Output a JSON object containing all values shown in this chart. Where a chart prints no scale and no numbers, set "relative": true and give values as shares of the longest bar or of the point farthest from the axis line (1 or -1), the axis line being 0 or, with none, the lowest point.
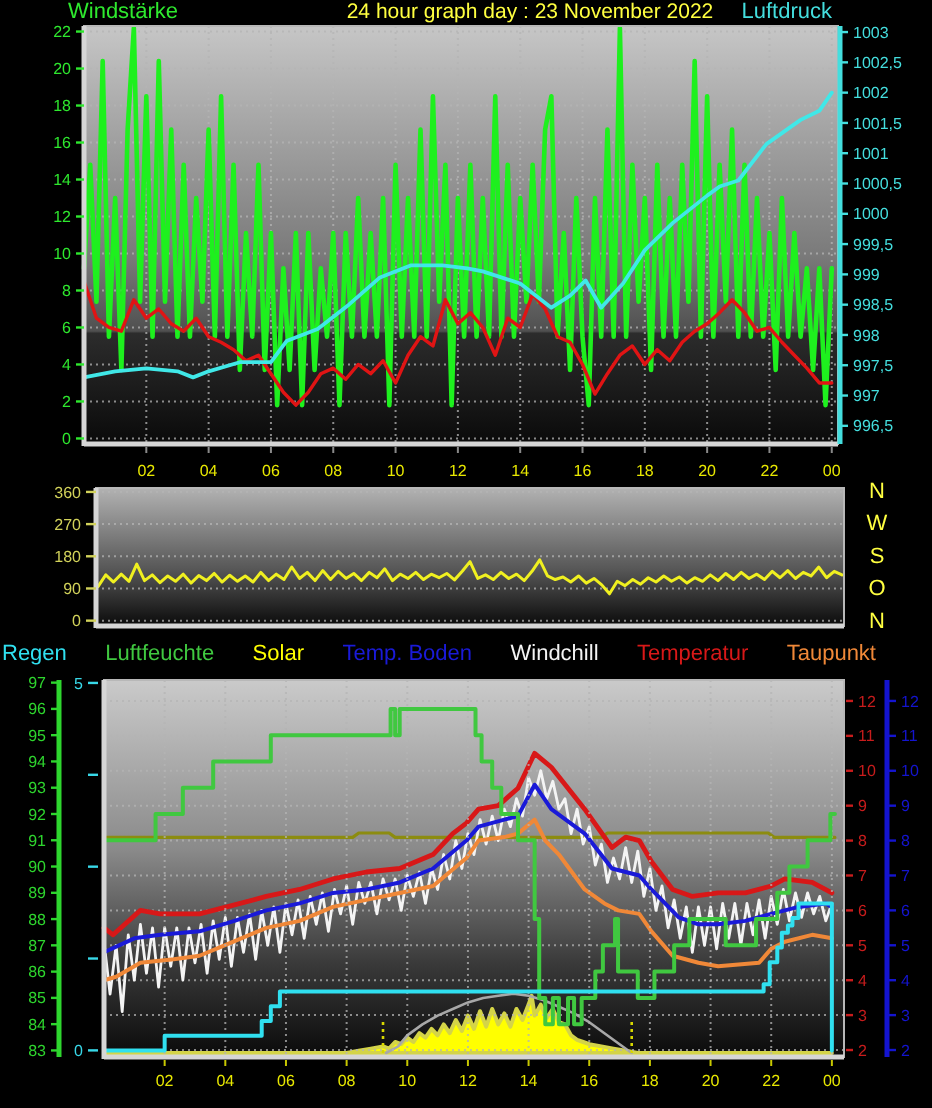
{
  "chart_data": [
    {
      "type": "line",
      "title": "24 hour graph day : 23 November 2022",
      "ylabel": "Windstärke",
      "y2label": "Luftdruck",
      "xlim": [
        "2022-11-23T00:00",
        "2022-11-24T00:12"
      ],
      "xticks": [
        {
          "value": "2022-11-23T02:00",
          "label": "02"
        },
        {
          "value": "2022-11-23T04:00",
          "label": "04"
        },
        {
          "value": "2022-11-23T06:00",
          "label": "06"
        },
        {
          "value": "2022-11-23T08:00",
          "label": "08"
        },
        {
          "value": "2022-11-23T10:00",
          "label": "10"
        },
        {
          "value": "2022-11-23T12:00",
          "label": "12"
        },
        {
          "value": "2022-11-23T14:00",
          "label": "14"
        },
        {
          "value": "2022-11-23T16:00",
          "label": "16"
        },
        {
          "value": "2022-11-23T18:00",
          "label": "18"
        },
        {
          "value": "2022-11-23T20:00",
          "label": "20"
        },
        {
          "value": "2022-11-23T22:00",
          "label": "22"
        },
        {
          "value": "2022-11-24T00:00",
          "label": "00"
        }
      ],
      "ylim": [
        -0.3,
        22.3
      ],
      "yticks": [
        0,
        2,
        4,
        6,
        8,
        10,
        12,
        14,
        16,
        18,
        20,
        22
      ],
      "y2lim": [
        996.2,
        1003.1
      ],
      "y2ticks": [
        {
          "value": 996.5,
          "label": "996,5"
        },
        997,
        {
          "value": 997.5,
          "label": "997,5"
        },
        998,
        {
          "value": 998.5,
          "label": "998,5"
        },
        999,
        {
          "value": 999.5,
          "label": "999,5"
        },
        1000,
        {
          "value": 1000.5,
          "label": "1000,5"
        },
        1001,
        {
          "value": 1001.5,
          "label": "1001,5"
        },
        1002,
        {
          "value": 1002.5,
          "label": "1002,5"
        },
        1003
      ],
      "grid": true,
      "x": [
        "2022-11-23T00:00",
        "2022-11-23T00:12",
        "2022-11-23T00:24",
        "2022-11-23T00:36",
        "2022-11-23T00:48",
        "2022-11-23T01:00",
        "2022-11-23T01:12",
        "2022-11-23T01:24",
        "2022-11-23T01:36",
        "2022-11-23T01:48",
        "2022-11-23T02:00",
        "2022-11-23T02:12",
        "2022-11-23T02:24",
        "2022-11-23T02:36",
        "2022-11-23T02:48",
        "2022-11-23T03:00",
        "2022-11-23T03:12",
        "2022-11-23T03:24",
        "2022-11-23T03:36",
        "2022-11-23T03:48",
        "2022-11-23T04:00",
        "2022-11-23T04:12",
        "2022-11-23T04:24",
        "2022-11-23T04:36",
        "2022-11-23T04:48",
        "2022-11-23T05:00",
        "2022-11-23T05:12",
        "2022-11-23T05:24",
        "2022-11-23T05:36",
        "2022-11-23T05:48",
        "2022-11-23T06:00",
        "2022-11-23T06:12",
        "2022-11-23T06:24",
        "2022-11-23T06:36",
        "2022-11-23T06:48",
        "2022-11-23T07:00",
        "2022-11-23T07:12",
        "2022-11-23T07:24",
        "2022-11-23T07:36",
        "2022-11-23T07:48",
        "2022-11-23T08:00",
        "2022-11-23T08:12",
        "2022-11-23T08:24",
        "2022-11-23T08:36",
        "2022-11-23T08:48",
        "2022-11-23T09:00",
        "2022-11-23T09:12",
        "2022-11-23T09:24",
        "2022-11-23T09:36",
        "2022-11-23T09:48",
        "2022-11-23T10:00",
        "2022-11-23T10:12",
        "2022-11-23T10:24",
        "2022-11-23T10:36",
        "2022-11-23T10:48",
        "2022-11-23T11:00",
        "2022-11-23T11:12",
        "2022-11-23T11:24",
        "2022-11-23T11:36",
        "2022-11-23T11:48",
        "2022-11-23T12:00",
        "2022-11-23T12:12",
        "2022-11-23T12:24",
        "2022-11-23T12:36",
        "2022-11-23T12:48",
        "2022-11-23T13:00",
        "2022-11-23T13:12",
        "2022-11-23T13:24",
        "2022-11-23T13:36",
        "2022-11-23T13:48",
        "2022-11-23T14:00",
        "2022-11-23T14:12",
        "2022-11-23T14:24",
        "2022-11-23T14:36",
        "2022-11-23T14:48",
        "2022-11-23T15:00",
        "2022-11-23T15:12",
        "2022-11-23T15:24",
        "2022-11-23T15:36",
        "2022-11-23T15:48",
        "2022-11-23T16:00",
        "2022-11-23T16:12",
        "2022-11-23T16:24",
        "2022-11-23T16:36",
        "2022-11-23T16:48",
        "2022-11-23T17:00",
        "2022-11-23T17:12",
        "2022-11-23T17:24",
        "2022-11-23T17:36",
        "2022-11-23T17:48",
        "2022-11-23T18:00",
        "2022-11-23T18:12",
        "2022-11-23T18:24",
        "2022-11-23T18:36",
        "2022-11-23T18:48",
        "2022-11-23T19:00",
        "2022-11-23T19:12",
        "2022-11-23T19:24",
        "2022-11-23T19:36",
        "2022-11-23T19:48",
        "2022-11-23T20:00",
        "2022-11-23T20:12",
        "2022-11-23T20:24",
        "2022-11-23T20:36",
        "2022-11-23T20:48",
        "2022-11-23T21:00",
        "2022-11-23T21:12",
        "2022-11-23T21:24",
        "2022-11-23T21:36",
        "2022-11-23T21:48",
        "2022-11-23T22:00",
        "2022-11-23T22:12",
        "2022-11-23T22:24",
        "2022-11-23T22:36",
        "2022-11-23T22:48",
        "2022-11-23T23:00",
        "2022-11-23T23:12",
        "2022-11-23T23:24",
        "2022-11-23T23:36",
        "2022-11-23T23:48",
        "2022-11-24T00:00"
      ],
      "series": [
        {
          "color": "#1ef01e",
          "values": [
            9.2,
            14.8,
            7.4,
            20.4,
            5.5,
            13,
            3.7,
            16.7,
            22.2,
            7.4,
            18.5,
            5.5,
            20.4,
            7.4,
            16.7,
            5.5,
            14.8,
            5.5,
            13,
            7.4,
            16.7,
            5.5,
            18.5,
            5.5,
            14.8,
            3.7,
            11.1,
            5.5,
            14.8,
            3.7,
            11.1,
            1.8,
            9.2,
            3.7,
            11.1,
            1.8,
            11.1,
            3.7,
            9.2,
            5.5,
            11.1,
            1.8,
            11.1,
            5.5,
            13,
            5.5,
            11.1,
            5.5,
            13,
            1.8,
            14.8,
            5.5,
            13,
            5.5,
            16.7,
            5.5,
            18.5,
            7.4,
            14.8,
            1.8,
            13,
            5.5,
            14.8,
            5.5,
            13,
            5.5,
            18.5,
            5.5,
            14.8,
            5.5,
            13,
            7.4,
            14.8,
            7.4,
            16.7,
            18.5,
            5.5,
            11.1,
            3.7,
            13,
            5.5,
            1.8,
            13,
            5.5,
            16.7,
            5.5,
            22.2,
            5.5,
            14.8,
            7.4,
            13,
            3.7,
            14.8,
            5.5,
            13,
            5.5,
            14.8,
            7.4,
            20.4,
            5.5,
            18.5,
            5.5,
            14.8,
            7.4,
            16.7,
            5.5,
            14.8,
            5.5,
            13,
            5.5,
            11.1,
            3.7,
            13,
            5.5,
            11.1,
            5.5,
            9.2,
            3.7,
            9.2,
            1.8,
            9.2
          ]
        },
        {
          "color": "#e01414",
          "x": [
            "2022-11-23T00:00",
            "2022-11-23T00:24",
            "2022-11-23T00:48",
            "2022-11-23T01:12",
            "2022-11-23T01:36",
            "2022-11-23T02:00",
            "2022-11-23T02:24",
            "2022-11-23T02:48",
            "2022-11-23T03:12",
            "2022-11-23T03:36",
            "2022-11-23T04:00",
            "2022-11-23T04:24",
            "2022-11-23T04:48",
            "2022-11-23T05:12",
            "2022-11-23T05:36",
            "2022-11-23T06:00",
            "2022-11-23T06:24",
            "2022-11-23T06:48",
            "2022-11-23T07:12",
            "2022-11-23T07:36",
            "2022-11-23T08:00",
            "2022-11-23T08:24",
            "2022-11-23T08:48",
            "2022-11-23T09:12",
            "2022-11-23T09:36",
            "2022-11-23T10:00",
            "2022-11-23T10:24",
            "2022-11-23T10:48",
            "2022-11-23T11:12",
            "2022-11-23T11:36",
            "2022-11-23T12:00",
            "2022-11-23T12:24",
            "2022-11-23T12:48",
            "2022-11-23T13:12",
            "2022-11-23T13:36",
            "2022-11-23T14:00",
            "2022-11-23T14:24",
            "2022-11-23T14:48",
            "2022-11-23T15:12",
            "2022-11-23T15:36",
            "2022-11-23T16:00",
            "2022-11-23T16:24",
            "2022-11-23T16:48",
            "2022-11-23T17:12",
            "2022-11-23T17:36",
            "2022-11-23T18:00",
            "2022-11-23T18:24",
            "2022-11-23T18:48",
            "2022-11-23T19:12",
            "2022-11-23T19:36",
            "2022-11-23T20:00",
            "2022-11-23T20:24",
            "2022-11-23T20:48",
            "2022-11-23T21:12",
            "2022-11-23T21:36",
            "2022-11-23T22:00",
            "2022-11-23T22:24",
            "2022-11-23T22:48",
            "2022-11-23T23:12",
            "2022-11-23T23:36",
            "2022-11-24T00:00"
          ],
          "values": [
            8.5,
            6.5,
            6,
            5.8,
            7.5,
            6.5,
            7,
            6.2,
            5.8,
            6.5,
            5.5,
            5.2,
            4.8,
            4.2,
            4.5,
            3.5,
            2.5,
            1.8,
            2.5,
            3.5,
            3.8,
            3.2,
            4,
            3.5,
            4.2,
            3,
            4.5,
            5.5,
            5,
            7.5,
            6.2,
            6.8,
            6,
            4.5,
            6.5,
            6,
            7.8,
            7,
            5.5,
            5.2,
            4,
            2.4,
            3.5,
            4.5,
            5,
            4,
            4.8,
            4.2,
            5.2,
            5.8,
            6.2,
            6.8,
            7.5,
            6.8,
            5.8,
            6,
            5.2,
            4.5,
            3.8,
            3,
            3
          ]
        },
        {
          "color": "#40e8e8",
          "axis": "y2",
          "x": [
            "2022-11-23T00:00",
            "2022-11-23T01:00",
            "2022-11-23T02:00",
            "2022-11-23T03:00",
            "2022-11-23T03:30",
            "2022-11-23T04:00",
            "2022-11-23T05:00",
            "2022-11-23T06:00",
            "2022-11-23T06:30",
            "2022-11-23T07:30",
            "2022-11-23T08:30",
            "2022-11-23T09:30",
            "2022-11-23T10:30",
            "2022-11-23T11:30",
            "2022-11-23T12:18",
            "2022-11-23T12:48",
            "2022-11-23T14:00",
            "2022-11-23T15:00",
            "2022-11-23T15:36",
            "2022-11-23T16:06",
            "2022-11-23T16:36",
            "2022-11-23T17:18",
            "2022-11-23T18:00",
            "2022-11-23T18:54",
            "2022-11-23T20:00",
            "2022-11-23T20:24",
            "2022-11-23T21:00",
            "2022-11-23T21:54",
            "2022-11-23T23:00",
            "2022-11-23T23:36",
            "2022-11-24T00:00"
          ],
          "values": [
            997.3,
            997.4,
            997.45,
            997.4,
            997.3,
            997.4,
            997.55,
            997.55,
            997.9,
            998.1,
            998.5,
            998.95,
            999.15,
            999.15,
            999.1,
            999.05,
            998.85,
            998.45,
            998.65,
            998.9,
            998.45,
            998.85,
            999.4,
            999.85,
            1000.3,
            1000.45,
            1000.55,
            1001.15,
            1001.55,
            1001.7,
            1002
          ]
        }
      ]
    },
    {
      "type": "line",
      "categories": [
        null,
        null,
        null,
        null,
        null,
        null,
        null,
        null,
        null,
        null,
        null,
        null,
        null,
        null,
        null,
        null,
        null,
        null,
        null,
        null,
        null,
        null,
        null,
        null,
        null,
        null,
        null,
        null,
        null,
        null,
        null,
        null,
        null,
        null,
        null,
        null,
        null,
        null,
        null,
        null,
        null,
        null,
        null,
        null,
        null,
        null,
        null,
        null,
        null,
        null,
        null,
        null,
        null,
        null,
        null,
        null,
        null,
        null,
        null,
        null,
        null,
        null,
        null,
        null,
        null,
        null,
        null,
        null,
        null,
        null,
        null,
        null,
        null,
        null,
        null,
        null,
        null,
        null,
        null,
        null,
        null,
        null,
        null,
        null,
        null,
        null,
        null,
        null,
        null,
        null,
        null,
        null,
        null,
        null,
        null,
        null,
        null
      ],
      "ylim": [
        -15,
        371
      ],
      "yticks": [
        0,
        90,
        180,
        270,
        360
      ],
      "grid": "y",
      "annotations": [
        "N",
        "W",
        "S",
        "O",
        "N"
      ],
      "series": [
        {
          "color": "#f0f020",
          "values": [
            95,
            128,
            108,
            130,
            110,
            158,
            112,
            128,
            106,
            125,
            110,
            130,
            105,
            126,
            112,
            132,
            108,
            127,
            110,
            125,
            108,
            135,
            112,
            130,
            115,
            150,
            118,
            135,
            112,
            140,
            115,
            138,
            118,
            132,
            112,
            135,
            120,
            145,
            112,
            130,
            118,
            135,
            115,
            130,
            120,
            132,
            114,
            138,
            165,
            118,
            128,
            115,
            135,
            118,
            130,
            112,
            138,
            170,
            125,
            115,
            122,
            108,
            125,
            105,
            118,
            100,
            75,
            110,
            98,
            115,
            102,
            120,
            108,
            125,
            110,
            122,
            105,
            120,
            110,
            128,
            112,
            132,
            115,
            135,
            118,
            130,
            115,
            138,
            120,
            140,
            118,
            135,
            125,
            150,
            120,
            138,
            128
          ]
        }
      ]
    },
    {
      "type": "step",
      "xlim": [
        "2022-11-23T00:00",
        "2022-11-24T00:24"
      ],
      "xticks": [
        {
          "value": "2022-11-23T02:00",
          "label": "02"
        },
        {
          "value": "2022-11-23T04:00",
          "label": "04"
        },
        {
          "value": "2022-11-23T06:00",
          "label": "06"
        },
        {
          "value": "2022-11-23T08:00",
          "label": "08"
        },
        {
          "value": "2022-11-23T10:00",
          "label": "10"
        },
        {
          "value": "2022-11-23T12:00",
          "label": "12"
        },
        {
          "value": "2022-11-23T14:00",
          "label": "14"
        },
        {
          "value": "2022-11-23T16:00",
          "label": "16"
        },
        {
          "value": "2022-11-23T18:00",
          "label": "18"
        },
        {
          "value": "2022-11-23T20:00",
          "label": "20"
        },
        {
          "value": "2022-11-23T22:00",
          "label": "22"
        },
        {
          "value": "2022-11-24T00:00",
          "label": "00"
        }
      ],
      "ylim": [
        82.75,
        97.1
      ],
      "yticks": [
        83,
        84,
        85,
        86,
        87,
        88,
        89,
        90,
        91,
        92,
        93,
        94,
        95,
        96,
        97
      ],
      "y2lim": [
        -0.09,
        5.04
      ],
      "y2ticks": [
        0,
        {
          "value": 1.25,
          "label": null
        },
        {
          "value": 2.5,
          "label": null
        },
        {
          "value": 3.75,
          "label": null
        },
        5
      ],
      "grid": "x",
      "legend": "top",
      "series": [
        {
          "name": "Regen",
          "axis": "y2",
          "color": "#30e0f0",
          "x": [
            "2022-11-23T00:00",
            "2022-11-23T02:00",
            "2022-11-23T05:12",
            "2022-11-23T05:30",
            "2022-11-23T05:48",
            "2022-11-23T21:45",
            "2022-11-23T21:57",
            "2022-11-23T22:12",
            "2022-11-23T22:21",
            "2022-11-23T22:33",
            "2022-11-23T22:42",
            "2022-11-23T22:54",
            "2022-11-24T00:00"
          ],
          "values": [
            0,
            0.2,
            0.4,
            0.6,
            0.8,
            0.9,
            1.2,
            1.4,
            1.6,
            1.7,
            1.8,
            2,
            0
          ]
        },
        {
          "name": "Luftfeuchte",
          "color": "#40c840",
          "x": [
            "2022-11-23T00:00",
            "2022-11-23T01:42",
            "2022-11-23T02:36",
            "2022-11-23T03:36",
            "2022-11-23T05:30",
            "2022-11-23T09:27",
            "2022-11-23T09:36",
            "2022-11-23T09:45",
            "2022-11-23T12:15",
            "2022-11-23T12:27",
            "2022-11-23T12:48",
            "2022-11-23T13:06",
            "2022-11-23T13:39",
            "2022-11-23T14:12",
            "2022-11-23T14:21",
            "2022-11-23T14:33",
            "2022-11-23T14:48",
            "2022-11-23T15:00",
            "2022-11-23T15:18",
            "2022-11-23T15:30",
            "2022-11-23T15:45",
            "2022-11-23T16:12",
            "2022-11-23T16:27",
            "2022-11-23T16:51",
            "2022-11-23T16:57",
            "2022-11-23T17:36",
            "2022-11-23T18:09",
            "2022-11-23T18:48",
            "2022-11-23T19:18",
            "2022-11-23T20:30",
            "2022-11-23T21:30",
            "2022-11-23T22:12",
            "2022-11-23T22:36",
            "2022-11-23T23:12",
            "2022-11-23T23:57",
            "2022-11-24T00:06"
          ],
          "values": [
            91,
            92,
            93,
            94,
            95,
            96,
            95,
            96,
            95,
            94,
            93,
            92,
            91,
            88,
            85,
            84,
            85,
            84,
            85,
            84,
            85,
            86,
            87,
            88,
            86,
            85,
            86,
            87,
            88,
            87,
            88,
            89,
            90,
            91,
            92,
            92
          ]
        }
      ]
    },
    {
      "type": "area",
      "relative": true,
      "xlim": [
        "2022-11-23T00:00",
        "2022-11-24T00:24"
      ],
      "legend": "top",
      "series": [
        {
          "name": "Solar",
          "color": "#ffff00",
          "x": [
            "2022-11-23T00:00",
            "2022-11-23T08:00",
            "2022-11-23T08:24",
            "2022-11-23T08:48",
            "2022-11-23T09:12",
            "2022-11-23T09:24",
            "2022-11-23T09:36",
            "2022-11-23T09:48",
            "2022-11-23T10:00",
            "2022-11-23T10:12",
            "2022-11-23T10:24",
            "2022-11-23T10:36",
            "2022-11-23T10:48",
            "2022-11-23T11:00",
            "2022-11-23T11:12",
            "2022-11-23T11:24",
            "2022-11-23T11:36",
            "2022-11-23T11:48",
            "2022-11-23T12:00",
            "2022-11-23T12:12",
            "2022-11-23T12:24",
            "2022-11-23T12:36",
            "2022-11-23T12:48",
            "2022-11-23T13:00",
            "2022-11-23T13:12",
            "2022-11-23T13:24",
            "2022-11-23T13:36",
            "2022-11-23T13:48",
            "2022-11-23T14:00",
            "2022-11-23T14:06",
            "2022-11-23T14:12",
            "2022-11-23T14:24",
            "2022-11-23T14:36",
            "2022-11-23T14:48",
            "2022-11-23T15:00",
            "2022-11-23T15:12",
            "2022-11-23T15:24",
            "2022-11-23T15:36",
            "2022-11-23T15:48",
            "2022-11-23T16:00",
            "2022-11-23T16:24",
            "2022-11-23T16:48",
            "2022-11-23T17:12",
            "2022-11-23T17:36",
            "2022-11-24T00:00"
          ],
          "values": [
            0,
            0,
            0.01,
            0.02,
            0.03,
            0.02,
            0.05,
            0.04,
            0.07,
            0.05,
            0.09,
            0.07,
            0.11,
            0.08,
            0.13,
            0.09,
            0.15,
            0.1,
            0.17,
            0.11,
            0.19,
            0.12,
            0.2,
            0.13,
            0.18,
            0.12,
            0.2,
            0.15,
            0.22,
            0.26,
            0.17,
            0.22,
            0.16,
            0.2,
            0.14,
            0.13,
            0.08,
            0.06,
            0.05,
            0.04,
            0.03,
            0.02,
            0.01,
            0,
            0
          ]
        },
        {
          "type": "line",
          "color": "#a8a8a8",
          "x": [
            "2022-11-23T09:18",
            "2022-11-23T09:42",
            "2022-11-23T10:00",
            "2022-11-23T10:30",
            "2022-11-23T11:00",
            "2022-11-23T11:30",
            "2022-11-23T12:00",
            "2022-11-23T12:30",
            "2022-11-23T13:00",
            "2022-11-23T13:30",
            "2022-11-23T14:00",
            "2022-11-23T14:30",
            "2022-11-23T15:00",
            "2022-11-23T15:30",
            "2022-11-23T16:00",
            "2022-11-23T16:30",
            "2022-11-23T17:00",
            "2022-11-23T17:24"
          ],
          "values": [
            0,
            0.03,
            0.08,
            0.13,
            0.17,
            0.2,
            0.23,
            0.25,
            0.26,
            0.27,
            0.26,
            0.24,
            0.21,
            0.18,
            0.14,
            0.09,
            0.04,
            0
          ]
        },
        {
          "type": "line",
          "color": "#8c8c10",
          "x": [
            "2022-11-23T00:00",
            "2022-11-23T08:12",
            "2022-11-23T08:24",
            "2022-11-23T09:24",
            "2022-11-23T09:36",
            "2022-11-23T16:24",
            "2022-11-23T16:36",
            "2022-11-23T21:54",
            "2022-11-23T22:06",
            "2022-11-24T00:06"
          ],
          "values": [
            0.98,
            0.98,
            1,
            1,
            0.98,
            0.98,
            1,
            1,
            0.98,
            0.98
          ]
        }
      ],
      "ref_lines": [
        {
          "axis": "x",
          "value": "2022-11-23T09:12",
          "color": "#d8d800",
          "line_style": "dotted"
        },
        {
          "axis": "x",
          "value": "2022-11-23T17:24",
          "color": "#d8d800",
          "line_style": "dotted"
        }
      ]
    },
    {
      "type": "line",
      "xlim": [
        "2022-11-23T00:00",
        "2022-11-24T00:24"
      ],
      "ylim": [
        1.8,
        12.6
      ],
      "yticks": [
        2,
        3,
        4,
        5,
        6,
        7,
        8,
        9,
        10,
        11,
        12
      ],
      "y2lim": [
        1.8,
        12.6
      ],
      "y2ticks": [
        2,
        3,
        4,
        5,
        6,
        7,
        8,
        9,
        10,
        11,
        12
      ],
      "grid": "y",
      "legend": "top",
      "x": [
        "2022-11-23T00:00",
        "2022-11-23T00:12",
        "2022-11-23T00:24",
        "2022-11-23T00:36",
        "2022-11-23T00:48",
        "2022-11-23T01:00",
        "2022-11-23T01:12",
        "2022-11-23T01:24",
        "2022-11-23T01:36",
        "2022-11-23T01:48",
        "2022-11-23T02:00",
        "2022-11-23T02:12",
        "2022-11-23T02:24",
        "2022-11-23T02:36",
        "2022-11-23T02:48",
        "2022-11-23T03:00",
        "2022-11-23T03:12",
        "2022-11-23T03:24",
        "2022-11-23T03:36",
        "2022-11-23T03:48",
        "2022-11-23T04:00",
        "2022-11-23T04:12",
        "2022-11-23T04:24",
        "2022-11-23T04:36",
        "2022-11-23T04:48",
        "2022-11-23T05:00",
        "2022-11-23T05:12",
        "2022-11-23T05:24",
        "2022-11-23T05:36",
        "2022-11-23T05:48",
        "2022-11-23T06:00",
        "2022-11-23T06:12",
        "2022-11-23T06:24",
        "2022-11-23T06:36",
        "2022-11-23T06:48",
        "2022-11-23T07:00",
        "2022-11-23T07:12",
        "2022-11-23T07:24",
        "2022-11-23T07:36",
        "2022-11-23T07:48",
        "2022-11-23T08:00",
        "2022-11-23T08:12",
        "2022-11-23T08:24",
        "2022-11-23T08:36",
        "2022-11-23T08:48",
        "2022-11-23T09:00",
        "2022-11-23T09:12",
        "2022-11-23T09:24",
        "2022-11-23T09:36",
        "2022-11-23T09:48",
        "2022-11-23T10:00",
        "2022-11-23T10:12",
        "2022-11-23T10:24",
        "2022-11-23T10:36",
        "2022-11-23T10:48",
        "2022-11-23T11:00",
        "2022-11-23T11:12",
        "2022-11-23T11:24",
        "2022-11-23T11:36",
        "2022-11-23T11:48",
        "2022-11-23T12:00",
        "2022-11-23T12:12",
        "2022-11-23T12:24",
        "2022-11-23T12:36",
        "2022-11-23T12:48",
        "2022-11-23T13:00",
        "2022-11-23T13:12",
        "2022-11-23T13:24",
        "2022-11-23T13:36",
        "2022-11-23T13:48",
        "2022-11-23T14:00",
        "2022-11-23T14:12",
        "2022-11-23T14:24",
        "2022-11-23T14:36",
        "2022-11-23T14:48",
        "2022-11-23T15:00",
        "2022-11-23T15:12",
        "2022-11-23T15:24",
        "2022-11-23T15:36",
        "2022-11-23T15:48",
        "2022-11-23T16:00",
        "2022-11-23T16:12",
        "2022-11-23T16:24",
        "2022-11-23T16:36",
        "2022-11-23T16:48",
        "2022-11-23T17:00",
        "2022-11-23T17:12",
        "2022-11-23T17:24",
        "2022-11-23T17:36",
        "2022-11-23T17:48",
        "2022-11-23T18:00",
        "2022-11-23T18:12",
        "2022-11-23T18:24",
        "2022-11-23T18:36",
        "2022-11-23T18:48",
        "2022-11-23T19:00",
        "2022-11-23T19:12",
        "2022-11-23T19:24",
        "2022-11-23T19:36",
        "2022-11-23T19:48",
        "2022-11-23T20:00",
        "2022-11-23T20:12",
        "2022-11-23T20:24",
        "2022-11-23T20:36",
        "2022-11-23T20:48",
        "2022-11-23T21:00",
        "2022-11-23T21:12",
        "2022-11-23T21:24",
        "2022-11-23T21:36",
        "2022-11-23T21:48",
        "2022-11-23T22:00",
        "2022-11-23T22:12",
        "2022-11-23T22:24",
        "2022-11-23T22:36",
        "2022-11-23T22:48",
        "2022-11-23T23:00",
        "2022-11-23T23:12",
        "2022-11-23T23:24",
        "2022-11-23T23:36",
        "2022-11-23T23:48",
        "2022-11-24T00:00"
      ],
      "series": [
        {
          "name": "Temp. Boden",
          "axis": "y2",
          "color": "#1a1ad8",
          "x": [
            "2022-11-23T00:00",
            "2022-11-23T01:00",
            "2022-11-23T01:51",
            "2022-11-23T03:09",
            "2022-11-23T04:18",
            "2022-11-23T05:21",
            "2022-11-23T06:27",
            "2022-11-23T07:33",
            "2022-11-23T08:39",
            "2022-11-23T09:45",
            "2022-11-23T10:51",
            "2022-11-23T11:57",
            "2022-11-23T12:21",
            "2022-11-23T13:12",
            "2022-11-23T13:39",
            "2022-11-23T14:12",
            "2022-11-23T14:45",
            "2022-11-23T15:51",
            "2022-11-23T16:45",
            "2022-11-23T17:39",
            "2022-11-23T18:03",
            "2022-11-23T18:57",
            "2022-11-23T19:36",
            "2022-11-23T20:15",
            "2022-11-23T21:09",
            "2022-11-23T22:00",
            "2022-11-23T22:54",
            "2022-11-23T23:48",
            "2022-11-24T00:00"
          ],
          "values": [
            4.8,
            5.2,
            5.3,
            5.4,
            5.7,
            6,
            6.2,
            6.5,
            6.6,
            6.8,
            7.2,
            8,
            8.4,
            8.6,
            8.7,
            9.6,
            8.9,
            8.2,
            7.2,
            7,
            6.6,
            5.8,
            5.6,
            5.6,
            5.7,
            5.9,
            6.1,
            6.2,
            6.1
          ]
        },
        {
          "name": "Windchill",
          "color": "#f4f4f4",
          "values": [
            5.1,
            3.6,
            5,
            3.1,
            5.3,
            4,
            5.6,
            4.2,
            5.5,
            3.8,
            5.5,
            4.4,
            5.5,
            4,
            5.5,
            4.5,
            5.6,
            4.2,
            5.7,
            4.6,
            5.8,
            4.4,
            5.8,
            4.8,
            5.9,
            4.6,
            6,
            5,
            6.1,
            4.8,
            6.2,
            5.3,
            6.3,
            5.2,
            6.4,
            5.6,
            6.5,
            5.4,
            6.6,
            5.9,
            6.7,
            5.6,
            6.8,
            6.2,
            6.8,
            5.9,
            6.9,
            6.3,
            6.9,
            6,
            7,
            6.4,
            7.1,
            6.2,
            7.2,
            6.6,
            7.6,
            6.9,
            8,
            7.2,
            8.2,
            7.6,
            8.6,
            7.9,
            8.7,
            8,
            8.9,
            8.4,
            9.2,
            8.7,
            9.8,
            9.3,
            10,
            9.2,
            9.7,
            8.9,
            9.2,
            8.2,
            8.9,
            7.9,
            8.4,
            7.3,
            7.9,
            6.8,
            7.5,
            6.9,
            7.8,
            6.8,
            7.7,
            6.4,
            7.2,
            6,
            6.7,
            5.5,
            6.3,
            5.2,
            6.1,
            4.8,
            6.1,
            5,
            6.1,
            4.9,
            6.2,
            5.2,
            6.2,
            5,
            6.2,
            5.3,
            6.3,
            5.2,
            6.4,
            5.6,
            6.6,
            5.7,
            6.5,
            5.8,
            6.5,
            5.9,
            6.4,
            5.7,
            6.2
          ]
        },
        {
          "name": "Temperatur",
          "color": "#d81818",
          "x": [
            "2022-11-23T00:00",
            "2022-11-23T00:18",
            "2022-11-23T01:12",
            "2022-11-23T01:51",
            "2022-11-23T03:09",
            "2022-11-23T04:03",
            "2022-11-23T05:21",
            "2022-11-23T06:27",
            "2022-11-23T07:33",
            "2022-11-23T08:39",
            "2022-11-23T09:45",
            "2022-11-23T10:51",
            "2022-11-23T11:30",
            "2022-11-23T11:57",
            "2022-11-23T12:21",
            "2022-11-23T13:00",
            "2022-11-23T13:39",
            "2022-11-23T14:12",
            "2022-11-23T14:45",
            "2022-11-23T15:51",
            "2022-11-23T16:45",
            "2022-11-23T17:12",
            "2022-11-23T17:39",
            "2022-11-23T18:03",
            "2022-11-23T18:45",
            "2022-11-23T19:24",
            "2022-11-23T20:15",
            "2022-11-23T21:09",
            "2022-11-23T22:00",
            "2022-11-23T22:27",
            "2022-11-23T23:21",
            "2022-11-24T00:00"
          ],
          "values": [
            5.5,
            5.3,
            6,
            5.9,
            5.9,
            6.1,
            6.4,
            6.6,
            6.9,
            7.1,
            7.2,
            7.6,
            8.2,
            8.5,
            8.9,
            9,
            9.5,
            10.5,
            10.1,
            8.9,
            7.8,
            8.1,
            8,
            7.4,
            6.6,
            6.4,
            6.5,
            6.5,
            6.7,
            6.9,
            6.8,
            6.5
          ]
        },
        {
          "name": "Taupunkt",
          "color": "#f08838",
          "x": [
            "2022-11-23T00:00",
            "2022-11-23T00:24",
            "2022-11-23T01:12",
            "2022-11-23T02:18",
            "2022-11-23T03:09",
            "2022-11-23T04:15",
            "2022-11-23T05:21",
            "2022-11-23T06:27",
            "2022-11-23T07:33",
            "2022-11-23T08:39",
            "2022-11-23T09:45",
            "2022-11-23T10:51",
            "2022-11-23T11:57",
            "2022-11-23T12:21",
            "2022-11-23T13:12",
            "2022-11-23T13:39",
            "2022-11-23T14:12",
            "2022-11-23T14:33",
            "2022-11-23T15:00",
            "2022-11-23T15:51",
            "2022-11-23T16:30",
            "2022-11-23T16:57",
            "2022-11-23T17:39",
            "2022-11-23T18:03",
            "2022-11-23T18:45",
            "2022-11-23T19:36",
            "2022-11-23T20:15",
            "2022-11-23T21:36",
            "2022-11-23T22:00",
            "2022-11-23T22:27",
            "2022-11-23T23:21",
            "2022-11-24T00:00"
          ],
          "values": [
            4,
            4.1,
            4.5,
            4.6,
            4.7,
            5.1,
            5.5,
            5.7,
            6.1,
            6.3,
            6.5,
            6.7,
            7.5,
            8,
            8.1,
            8.2,
            8.6,
            8,
            7.6,
            6.6,
            6.2,
            6,
            5.9,
            5.4,
            4.7,
            4.5,
            4.4,
            4.5,
            4.9,
            5.1,
            5.3,
            5.2
          ]
        }
      ]
    }
  ]
}
